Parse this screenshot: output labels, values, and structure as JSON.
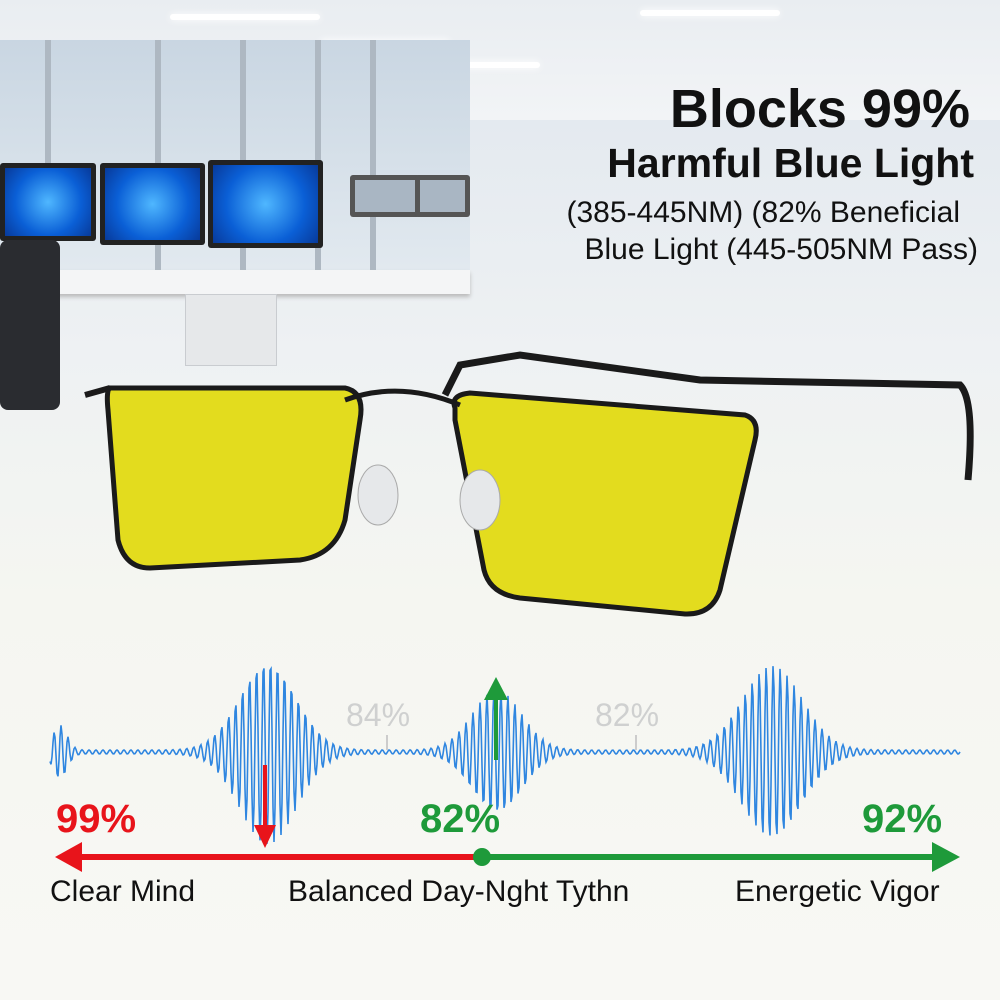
{
  "headline": {
    "line1": "Blocks 99%",
    "line2": "Harmful Blue Light",
    "line3": "(385-445NM) (82% Beneficial",
    "line4": "Blue Light (445-505NM Pass)"
  },
  "scale": {
    "ghost_left": "84%",
    "ghost_right": "82%",
    "left_value": "99%",
    "center_value": "82%",
    "right_value": "92%",
    "left_label": "Clear Mind",
    "center_label": "Balanced Day-Nght Tythn",
    "right_label": "Energetic Vigor"
  },
  "colors": {
    "red": "#e8141b",
    "green": "#1e9a3a",
    "wave": "#2f86e0",
    "lens": "#e3dc1e",
    "frame": "#1a1a1a"
  }
}
